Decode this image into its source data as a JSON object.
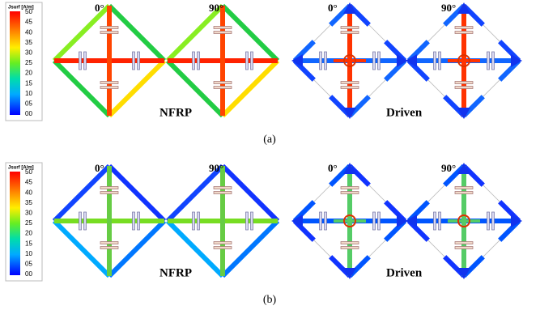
{
  "panels": [
    {
      "colorbar": {
        "title": "Jsurf [A/m]",
        "ticks": [
          "50",
          "45",
          "40",
          "35",
          "30",
          "25",
          "20",
          "15",
          "10",
          "05",
          "00"
        ]
      },
      "angles": [
        "0°",
        "90°",
        "0°",
        "90°"
      ],
      "groups": [
        "NFRP",
        "Driven"
      ],
      "caption": "(a)"
    },
    {
      "colorbar": {
        "title": "Jsurf [A/m]",
        "ticks": [
          "50",
          "45",
          "40",
          "35",
          "30",
          "25",
          "20",
          "15",
          "10",
          "05",
          "00"
        ]
      },
      "angles": [
        "0°",
        "90°",
        "0°",
        "90°"
      ],
      "groups": [
        "NFRP",
        "Driven"
      ],
      "caption": "(b)"
    }
  ]
}
